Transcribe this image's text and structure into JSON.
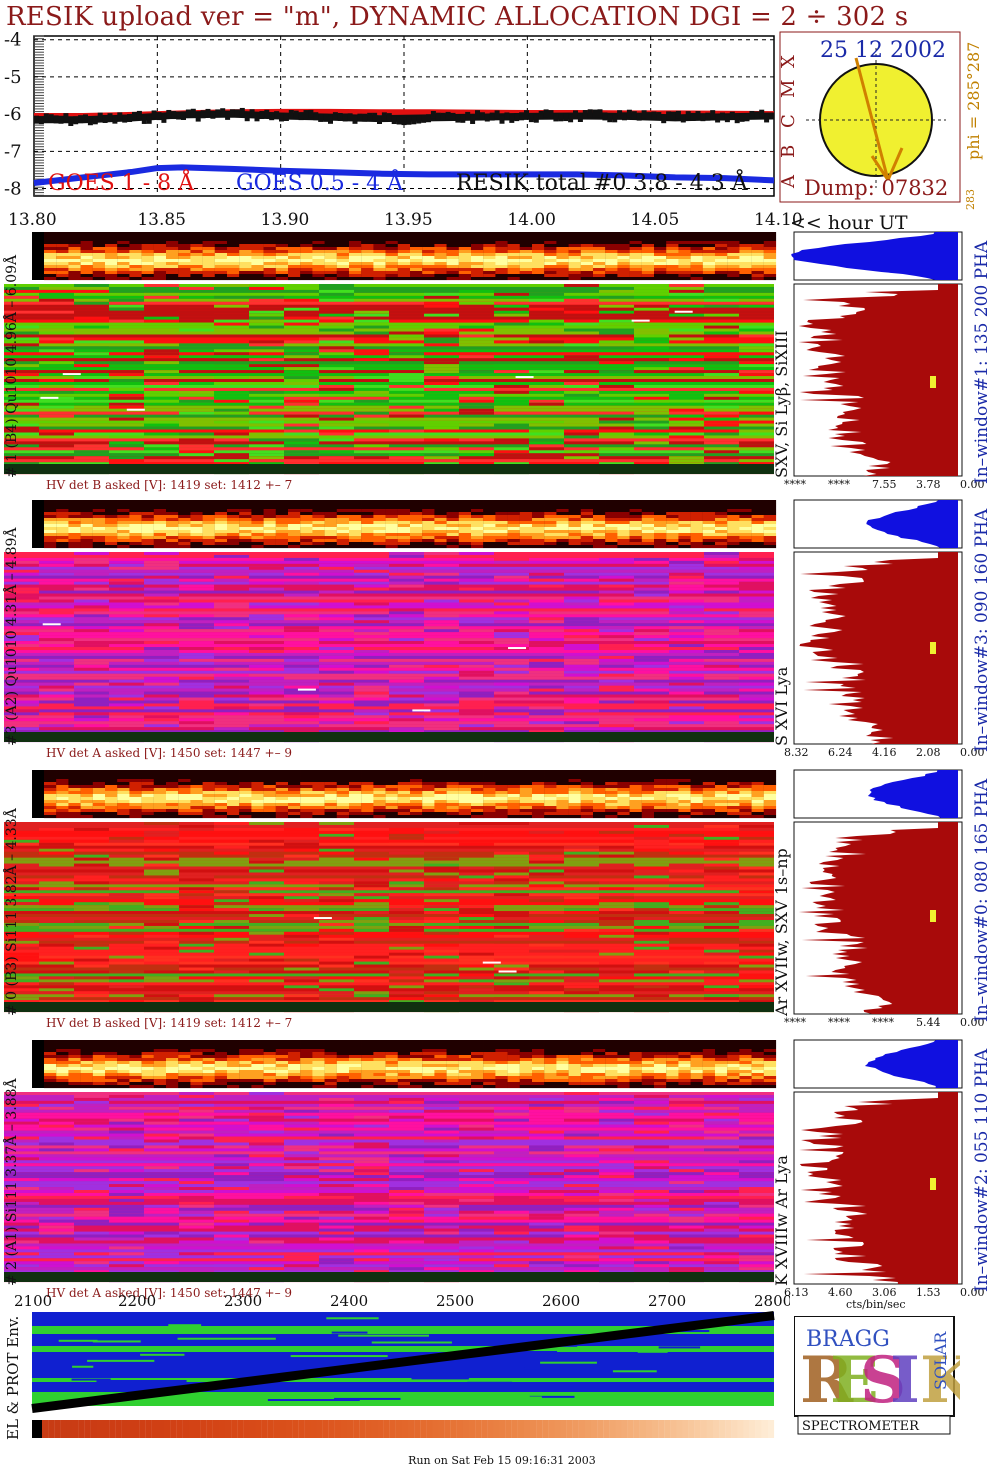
{
  "title": "RESIK upload ver = \"m\", DYNAMIC ALLOCATION  DGI =   2 ÷ 302 s",
  "colors": {
    "goes_long": "#e01010",
    "goes_short": "#1a2ae0",
    "resik_total": "#111111",
    "title": "#8b1a1a",
    "pha_blue": "#1010e0",
    "pha_red": "#a80a0a"
  },
  "chart_data": [
    {
      "type": "line",
      "x_ticks": [
        "13.80",
        "13.85",
        "13.90",
        "13.95",
        "14.00",
        "14.05",
        "14.10"
      ],
      "x_suffix": "<< hour UT",
      "y_ticks": [
        "-4",
        "-5",
        "-6",
        "-7",
        "-8"
      ],
      "ylim": [
        -8.2,
        -3.9
      ],
      "xlim": [
        13.8,
        14.1
      ],
      "series": [
        {
          "name": "GOES 1 - 8 Å",
          "color": "#e01010",
          "x": [
            13.8,
            13.82,
            13.84,
            13.86,
            13.88,
            13.9,
            13.92,
            13.94,
            13.96,
            13.98,
            14.0,
            14.02,
            14.04,
            14.06,
            14.08,
            14.1
          ],
          "y": [
            -6.05,
            -6.05,
            -6.02,
            -5.98,
            -5.95,
            -5.94,
            -5.94,
            -5.95,
            -5.95,
            -5.96,
            -5.97,
            -5.97,
            -5.98,
            -5.98,
            -5.99,
            -6.0
          ]
        },
        {
          "name": "GOES 0.5 - 4 Å",
          "color": "#1a2ae0",
          "x": [
            13.8,
            13.82,
            13.84,
            13.85,
            13.86,
            13.88,
            13.9,
            13.92,
            13.94,
            13.96,
            13.98,
            14.0,
            14.02,
            14.04,
            14.06,
            14.08,
            14.1
          ],
          "y": [
            -7.85,
            -7.7,
            -7.55,
            -7.45,
            -7.43,
            -7.47,
            -7.52,
            -7.56,
            -7.6,
            -7.62,
            -7.62,
            -7.62,
            -7.62,
            -7.65,
            -7.7,
            -7.72,
            -7.78
          ]
        },
        {
          "name": "RESIK total #0  3.8 - 4.3 Å",
          "color": "#111111",
          "x": [
            13.8,
            13.82,
            13.84,
            13.86,
            13.88,
            13.9,
            13.92,
            13.94,
            13.96,
            13.98,
            14.0,
            14.02,
            14.04,
            14.06,
            14.08,
            14.1
          ],
          "y": [
            -6.15,
            -6.15,
            -6.1,
            -6.02,
            -6.0,
            -6.05,
            -6.08,
            -6.12,
            -6.1,
            -6.08,
            -6.06,
            -6.05,
            -6.06,
            -6.1,
            -6.07,
            -6.05
          ]
        }
      ]
    },
    {
      "type": "line",
      "x_ticks": [
        "2100",
        "2200",
        "2300",
        "2400",
        "2500",
        "2600",
        "2700",
        "2800"
      ],
      "xlim": [
        2100,
        2800
      ],
      "x": [
        2100,
        2800
      ],
      "y": [
        0.08,
        0.92
      ]
    }
  ],
  "axis_labels": {
    "top_left_small": "13.80",
    "axis_top_x_suffix": "<< hour UT"
  },
  "sun": {
    "date": "25 12 2002",
    "dump": "Dump: 07832",
    "phi": "phi = 285°287",
    "phi_small": "283",
    "axis_letters": [
      "A",
      "B",
      "C",
      "M",
      "X"
    ]
  },
  "panels": [
    {
      "label": "# 1 (B4) Qu1010 4.96Å – 6.09Å",
      "line": "SXV, Si Lyβ, SiXIII",
      "window": "In–window#1:  135 200 PHA",
      "hv": "HV det B asked [V]:  1419 set:  1412 +–    7",
      "pha_ticks": [
        "****",
        "****",
        "7.55",
        "3.78",
        "0.00"
      ],
      "style": "green"
    },
    {
      "label": "#3 (A2) Qu1010  4.31Å – 4.89Å",
      "line": "S XVI Lya",
      "window": "In–window#3:  090 160 PHA",
      "hv": "HV det A asked [V]:  1450 set:  1447 +–    9",
      "pha_ticks": [
        "8.32",
        "6.24",
        "4.16",
        "2.08",
        "0.00"
      ],
      "style": "magenta"
    },
    {
      "label": "# 0 (B3) Si111  3.82Å – 4.33Å",
      "line": "Ar XVIIw, SXV 1s–np",
      "window": "In–window#0:  080 165 PHA",
      "hv": "HV det B asked [V]:  1419 set:  1412 +–    7",
      "pha_ticks": [
        "****",
        "****",
        "****",
        "5.44",
        "0.00"
      ],
      "style": "red"
    },
    {
      "label": "# 2 (A1) Si111  3.37Å – 3.88Å",
      "line": "K XVIIIw  Ar Lya",
      "window": "In–window#2:  055 110 PHA",
      "hv": "HV det A asked [V]:  1450 set:  1447 +–    9",
      "pha_ticks": [
        "6.13",
        "4.60",
        "3.06",
        "1.53",
        "0.00"
      ],
      "pha_unit": "cts/bin/sec",
      "style": "magenta"
    }
  ],
  "bottom": {
    "env_label": "EL & PROT Env."
  },
  "logo": {
    "letters_big": "RESIK",
    "bragg": "BRAGG",
    "solar": "SOLAR",
    "spectrometer": "SPECTROMETER"
  },
  "footer": "Run on Sat Feb 15 09:16:31 2003"
}
